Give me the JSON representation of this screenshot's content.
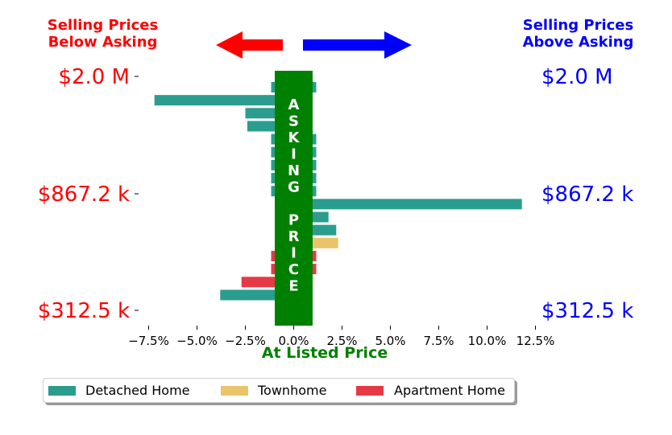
{
  "headers": {
    "left": [
      "Selling Prices",
      "Below Asking"
    ],
    "right": [
      "Selling Prices",
      "Above Asking"
    ]
  },
  "asking_price_label": "ASKING PRICE",
  "colors": {
    "below": "#ff0000",
    "above": "#0000ff",
    "asking": "#008000",
    "detached": "#2a9d8f",
    "townhome": "#e9c46a",
    "apartment": "#e63946"
  },
  "chart_data": {
    "type": "bar",
    "orientation": "horizontal",
    "xlabel": "At Listed Price",
    "x_ticks": [
      -7.5,
      -5.0,
      -2.5,
      0.0,
      2.5,
      5.0,
      7.5,
      10.0,
      12.5
    ],
    "x_tick_labels": [
      "−7.5%",
      "−5.0%",
      "−2.5%",
      "0.0%",
      "2.5%",
      "5.0%",
      "7.5%",
      "10.0%",
      "12.5%"
    ],
    "xlim": [
      -8.5,
      13.5
    ],
    "y_tick_labels_left": [
      "$2.0 M",
      "$867.2 k",
      "$312.5 k"
    ],
    "y_tick_labels_right": [
      "$2.0 M",
      "$867.2 k",
      "$312.5 k"
    ],
    "y_tick_values": [
      2000000,
      867200,
      312500
    ],
    "bars": [
      {
        "type": "Detached Home",
        "value": 0.0
      },
      {
        "type": "Detached Home",
        "value": -7.2
      },
      {
        "type": "Detached Home",
        "value": -2.5
      },
      {
        "type": "Detached Home",
        "value": -2.4
      },
      {
        "type": "Detached Home",
        "value": 0.0
      },
      {
        "type": "Detached Home",
        "value": 0.0
      },
      {
        "type": "Detached Home",
        "value": 0.0
      },
      {
        "type": "Detached Home",
        "value": 0.0
      },
      {
        "type": "Detached Home",
        "value": 0.0
      },
      {
        "type": "Detached Home",
        "value": 11.8
      },
      {
        "type": "Detached Home",
        "value": 1.8
      },
      {
        "type": "Detached Home",
        "value": 2.2
      },
      {
        "type": "Townhome",
        "value": 2.3
      },
      {
        "type": "Apartment Home",
        "value": 0.0
      },
      {
        "type": "Apartment Home",
        "value": 0.0
      },
      {
        "type": "Apartment Home",
        "value": -2.7
      },
      {
        "type": "Detached Home",
        "value": -3.8
      }
    ],
    "legend": [
      "Detached Home",
      "Townhome",
      "Apartment Home"
    ],
    "legend_position": "bottom-left"
  }
}
